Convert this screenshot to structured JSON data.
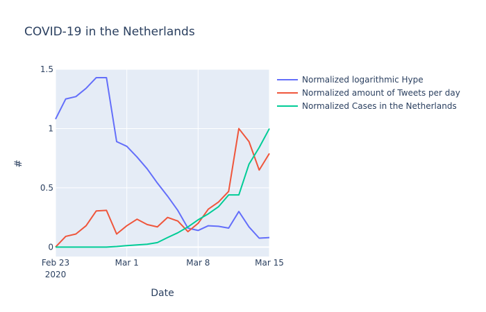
{
  "chart_data": {
    "type": "line",
    "title": "COVID-19 in the Netherlands",
    "xlabel": "Date",
    "ylabel": "#",
    "x_start": "2020-02-23",
    "xlim": [
      "2020-02-23",
      "2020-03-15"
    ],
    "ylim": [
      -0.08,
      1.5
    ],
    "x_ticks": [
      {
        "date": "2020-02-23",
        "label": "Feb 23",
        "sublabel": "2020"
      },
      {
        "date": "2020-03-01",
        "label": "Mar 1",
        "sublabel": ""
      },
      {
        "date": "2020-03-08",
        "label": "Mar 8",
        "sublabel": ""
      },
      {
        "date": "2020-03-15",
        "label": "Mar 15",
        "sublabel": ""
      }
    ],
    "y_ticks": [
      {
        "value": 0,
        "label": "0"
      },
      {
        "value": 0.5,
        "label": "0.5"
      },
      {
        "value": 1,
        "label": "1"
      },
      {
        "value": 1.5,
        "label": "1.5"
      }
    ],
    "grid": true,
    "legend_position": "top-right",
    "x": [
      "2020-02-23",
      "2020-02-24",
      "2020-02-25",
      "2020-02-26",
      "2020-02-27",
      "2020-02-28",
      "2020-02-29",
      "2020-03-01",
      "2020-03-02",
      "2020-03-03",
      "2020-03-04",
      "2020-03-05",
      "2020-03-06",
      "2020-03-07",
      "2020-03-08",
      "2020-03-09",
      "2020-03-10",
      "2020-03-11",
      "2020-03-12",
      "2020-03-13",
      "2020-03-14",
      "2020-03-15"
    ],
    "series": [
      {
        "name": "Normalized logarithmic Hype",
        "color": "#636efa",
        "values": [
          1.08,
          1.25,
          1.27,
          1.34,
          1.43,
          1.43,
          0.89,
          0.85,
          0.76,
          0.66,
          0.54,
          0.43,
          0.31,
          0.16,
          0.14,
          0.18,
          0.175,
          0.16,
          0.3,
          0.17,
          0.075,
          0.08
        ]
      },
      {
        "name": "Normalized amount of Tweets per day",
        "color": "#ef553b",
        "values": [
          0.0,
          0.09,
          0.11,
          0.18,
          0.305,
          0.31,
          0.11,
          0.18,
          0.235,
          0.19,
          0.17,
          0.25,
          0.22,
          0.13,
          0.2,
          0.32,
          0.38,
          0.47,
          1.0,
          0.89,
          0.65,
          0.79
        ]
      },
      {
        "name": "Normalized Cases in the Netherlands",
        "color": "#00cc96",
        "values": [
          0.0,
          0.0,
          0.0,
          0.0,
          0.0,
          0.0,
          0.005,
          0.012,
          0.018,
          0.024,
          0.038,
          0.08,
          0.12,
          0.17,
          0.23,
          0.28,
          0.34,
          0.44,
          0.44,
          0.7,
          0.84,
          1.0
        ]
      }
    ]
  }
}
